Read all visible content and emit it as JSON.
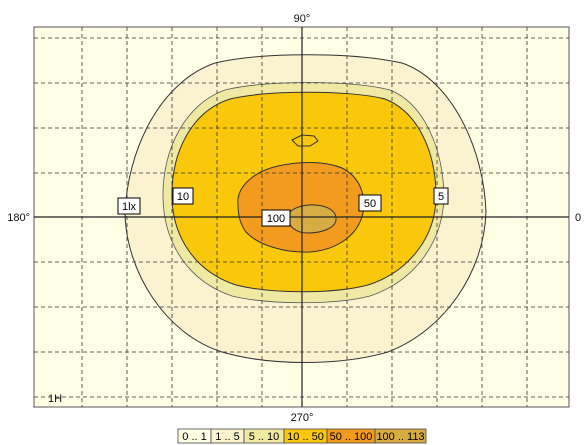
{
  "chart_data": {
    "type": "contour",
    "title": "",
    "axis_labels": {
      "top": "90°",
      "bottom": "270°",
      "left": "180°",
      "right": "0"
    },
    "corner_label": "1H",
    "grid": true,
    "colors": {
      "background": "#ffffe6",
      "band_0_1": "#ffffe6",
      "band_1_5": "#fbf3cf",
      "band_5_10": "#f0e9a4",
      "band_10_50": "#fac80a",
      "band_50_100": "#f39b1e",
      "band_100_113": "#d7ac43"
    },
    "contour_labels": [
      {
        "text": "1lx",
        "value": 1
      },
      {
        "text": "10",
        "value": 10
      },
      {
        "text": "100",
        "value": 100
      },
      {
        "text": "50",
        "value": 50
      },
      {
        "text": "5",
        "value": 5
      }
    ],
    "legend": {
      "position": "bottom-center",
      "entries": [
        {
          "label": "0 .. 1",
          "min": 0,
          "max": 1,
          "color": "#ffffe6"
        },
        {
          "label": "1 .. 5",
          "min": 1,
          "max": 5,
          "color": "#fbf3cf"
        },
        {
          "label": "5 .. 10",
          "min": 5,
          "max": 10,
          "color": "#f0e9a4"
        },
        {
          "label": "10 .. 50",
          "min": 10,
          "max": 50,
          "color": "#fac80a"
        },
        {
          "label": "50 .. 100",
          "min": 50,
          "max": 100,
          "color": "#f39b1e"
        },
        {
          "label": "100 .. 113",
          "min": 100,
          "max": 113,
          "color": "#d7ac43"
        }
      ]
    }
  }
}
